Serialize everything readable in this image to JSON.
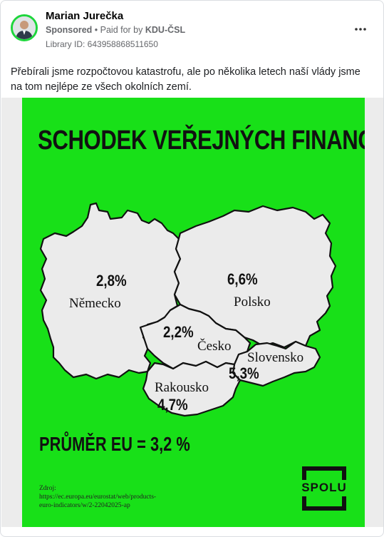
{
  "post": {
    "author": "Marian Jurečka",
    "sponsored": "Sponsored",
    "paid_for": "• Paid for by",
    "payer": "KDU-ČSL",
    "library_id": "Library ID: 643958868511650",
    "text": "Přebírali jsme rozpočtovou katastrofu, ale po několika letech naší vlády jsme na tom nejlépe ze všech okolních zemí."
  },
  "icons": {
    "avatar": "person-avatar",
    "more": "more-dots-icon",
    "logo": "spolu-logo"
  },
  "ad": {
    "title": "SCHODEK VEŘEJNÝCH FINANCÍ",
    "countries": {
      "germany": {
        "name": "Německo",
        "value": "2,8%"
      },
      "poland": {
        "name": "Polsko",
        "value": "6,6%"
      },
      "czechia": {
        "name": "Česko",
        "value": "2,2%"
      },
      "slovakia": {
        "name": "Slovensko",
        "value": "5,3%"
      },
      "austria": {
        "name": "Rakousko",
        "value": "4,7%"
      }
    },
    "average": "PRŮMĚR EU = 3,2 %",
    "source_label": "Zdroj:",
    "source_lines": [
      "https://ec.europa.eu/eurostat/web/products-",
      "euro-indicators/w/2-22042025-ap"
    ],
    "logo_text": "SPOLU"
  },
  "colors": {
    "ad_background": "#18e018",
    "map_fill": "#ebebeb",
    "avatar_ring": "#1ed63c",
    "text_secondary": "#65676b"
  }
}
